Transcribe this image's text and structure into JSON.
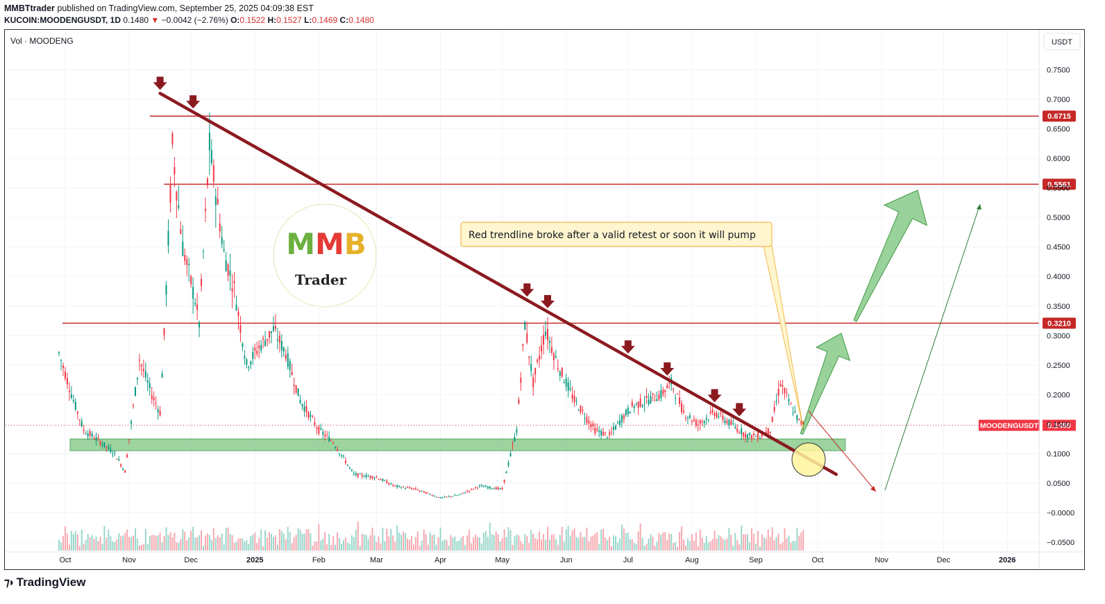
{
  "header": {
    "author": "MMBTtrader",
    "published_text": " published on TradingView.com, September 25, 2025 04:09:38 EST",
    "symbol": "KUCOIN:MOODENGUSDT, 1D",
    "last": "0.1480",
    "change_arrow": "▼",
    "change": "−0.0042 (−2.76%)",
    "o_label": "O:",
    "o": "0.1522",
    "h_label": "H:",
    "h": "0.1527",
    "l_label": "L:",
    "l": "0.1469",
    "c_label": "C:",
    "c": "0.1480"
  },
  "legend": {
    "vol_label": "Vol · MOODENG"
  },
  "currency_badge": "USDT",
  "price_label": {
    "name": "MOODENGUSDT",
    "value": "0.1480"
  },
  "level_labels": [
    "0.6715",
    "0.5561",
    "0.3210"
  ],
  "annotation": "Red trendline broke after a valid retest or soon it will pump",
  "logo": {
    "letters": "MMB",
    "sub": "Trader"
  },
  "footer": {
    "brand": "TradingView"
  },
  "colors": {
    "up": "#089981",
    "down": "#f23645",
    "trendline": "#8b1a1f",
    "level": "#c62828",
    "zone": "#7cc47f",
    "arrow": "#6dbf6f",
    "callout_bg": "#fff6cf",
    "callout_border": "#f2b84b"
  },
  "chart_data": {
    "type": "line",
    "title": "",
    "y_axis_ticks": [
      "0.7500",
      "0.7000",
      "0.6500",
      "0.6000",
      "0.5500",
      "0.5000",
      "0.4500",
      "0.4000",
      "0.3500",
      "0.3000",
      "0.2500",
      "0.2000",
      "0.1500",
      "0.1000",
      "0.0500",
      "−0.0000",
      "−0.0500"
    ],
    "x_axis_ticks": [
      "Oct",
      "Nov",
      "Dec",
      "2025",
      "Feb",
      "Mar",
      "Apr",
      "May",
      "Jun",
      "Jul",
      "Aug",
      "Sep",
      "Oct",
      "Nov",
      "Dec",
      "2026"
    ],
    "ylim": [
      -0.06,
      0.77
    ],
    "series": [
      {
        "x": [
          "2024-09-28",
          "2024-10-05",
          "2024-10-10",
          "2024-10-18",
          "2024-10-25",
          "2024-10-30",
          "2024-11-06",
          "2024-11-12",
          "2024-11-16",
          "2024-11-18",
          "2024-11-22",
          "2024-11-27",
          "2024-12-03",
          "2024-12-05",
          "2024-12-10",
          "2024-12-17",
          "2024-12-22",
          "2024-12-28",
          "2025-01-03",
          "2025-01-10",
          "2025-01-16",
          "2025-01-23",
          "2025-02-01",
          "2025-02-08",
          "2025-02-18",
          "2025-03-01",
          "2025-03-10",
          "2025-03-20",
          "2025-04-01",
          "2025-04-10",
          "2025-04-20",
          "2025-05-01",
          "2025-05-08",
          "2025-05-12",
          "2025-05-16",
          "2025-05-22",
          "2025-05-28",
          "2025-06-05",
          "2025-06-15",
          "2025-06-22",
          "2025-06-28",
          "2025-07-03",
          "2025-07-10",
          "2025-07-17",
          "2025-07-22",
          "2025-07-28",
          "2025-08-04",
          "2025-08-12",
          "2025-08-20",
          "2025-08-28",
          "2025-09-03",
          "2025-09-08",
          "2025-09-13",
          "2025-09-18",
          "2025-09-22",
          "2025-09-25"
        ],
        "values": [
          0.27,
          0.19,
          0.14,
          0.12,
          0.1,
          0.07,
          0.26,
          0.2,
          0.17,
          0.3,
          0.62,
          0.45,
          0.36,
          0.32,
          0.62,
          0.44,
          0.38,
          0.25,
          0.28,
          0.31,
          0.27,
          0.19,
          0.14,
          0.12,
          0.065,
          0.06,
          0.045,
          0.04,
          0.025,
          0.03,
          0.045,
          0.04,
          0.14,
          0.32,
          0.22,
          0.31,
          0.25,
          0.19,
          0.14,
          0.13,
          0.16,
          0.18,
          0.19,
          0.2,
          0.22,
          0.17,
          0.15,
          0.17,
          0.15,
          0.13,
          0.13,
          0.14,
          0.22,
          0.18,
          0.155,
          0.148
        ]
      }
    ],
    "horizontal_levels": [
      0.6715,
      0.5561,
      0.321
    ],
    "support_zone": [
      0.105,
      0.125
    ],
    "trendline": {
      "from": [
        "2024-11-16",
        0.71
      ],
      "to": [
        "2025-10-10",
        0.065
      ]
    }
  }
}
